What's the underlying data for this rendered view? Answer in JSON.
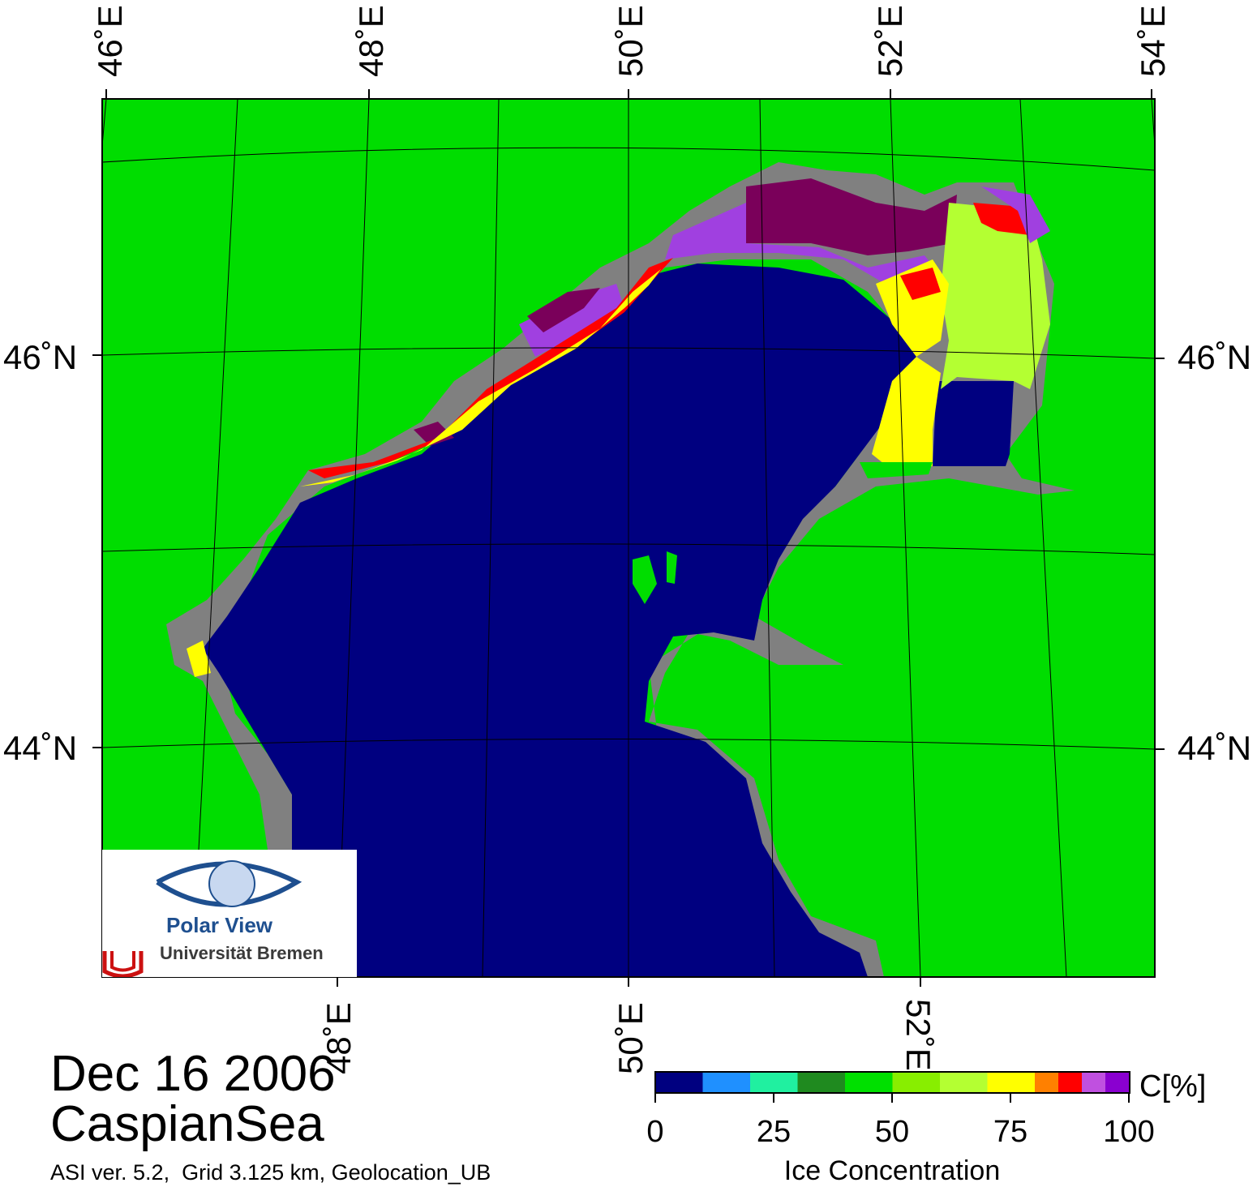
{
  "header": {
    "lon_labels_top": [
      "46˚E",
      "48˚E",
      "50˚E",
      "52˚E",
      "54˚E"
    ]
  },
  "axes": {
    "lat_labels": [
      "46˚N",
      "44˚N"
    ],
    "lon_labels_bottom": [
      "48˚E",
      "50˚E",
      "52˚E"
    ]
  },
  "footer": {
    "date": "Dec 16 2006",
    "region": "CaspianSea",
    "meta": "ASI ver. 5.2,  Grid 3.125 km, Geolocation_UB"
  },
  "legend": {
    "title": "Ice Concentration",
    "unit": "C[%]",
    "ticks": [
      "0",
      "25",
      "50",
      "75",
      "100"
    ],
    "colors": [
      "#000080",
      "#1f90ff",
      "#20f0a0",
      "#1f8a1f",
      "#00e000",
      "#88ee00",
      "#b4ff32",
      "#ffff00",
      "#ff8000",
      "#ff0000",
      "#c050e0",
      "#8a00d0",
      "#ffffff"
    ]
  },
  "map_colors": {
    "water": "#000080",
    "land": "#00dd00",
    "coast_mask": "#808080",
    "ice_high": "#7a005a",
    "ice_purple": "#a040e0",
    "ice_red": "#ff0000",
    "ice_orange": "#ff8000",
    "ice_yellow": "#ffff00",
    "ice_yellowgreen": "#b4ff32",
    "ice_lightgreen": "#88ee00"
  },
  "logo": {
    "title": "Polar View",
    "subtitle": "Universität Bremen"
  }
}
